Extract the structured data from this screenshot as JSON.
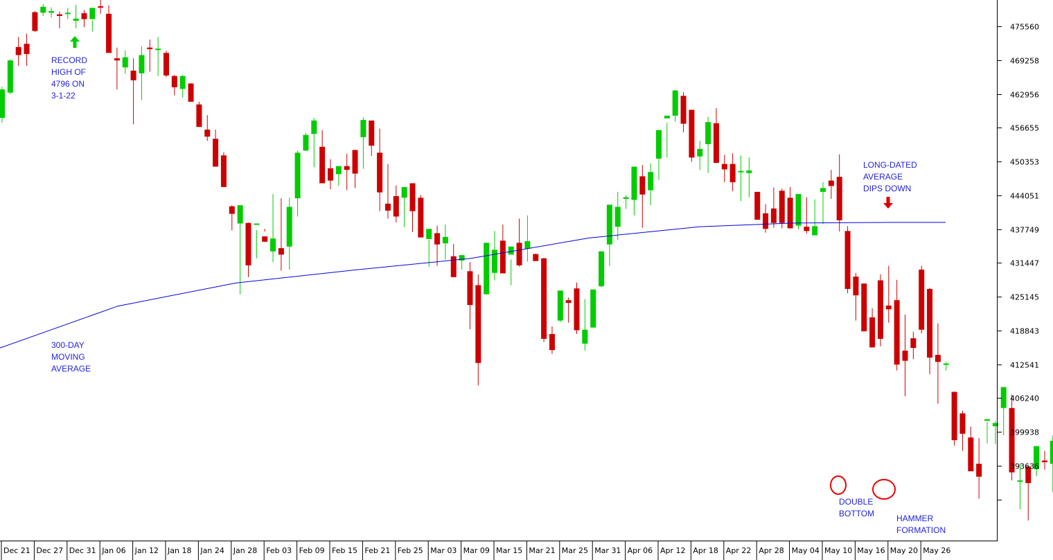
{
  "chart_data": {
    "type": "candlestick",
    "x_axis_labels": [
      "Dec 21",
      "Dec 27",
      "Dec 31",
      "Jan 06",
      "Jan 12",
      "Jan 18",
      "Jan 24",
      "Jan 28",
      "Feb 03",
      "Feb 09",
      "Feb 15",
      "Feb 21",
      "Feb 25",
      "Mar 03",
      "Mar 09",
      "Mar 15",
      "Mar 21",
      "Mar 25",
      "Mar 31",
      "Apr 06",
      "Apr 12",
      "Apr 18",
      "Apr 22",
      "Apr 28",
      "May 04",
      "May 10",
      "May 16",
      "May 20",
      "May 26"
    ],
    "y_axis_ticks": [
      475560,
      469258,
      462956,
      456655,
      450353,
      444051,
      437749,
      431447,
      425145,
      418843,
      412541,
      406240,
      399938,
      393636
    ],
    "ylim": [
      383000,
      482000
    ],
    "colors": {
      "up": "#00cc00",
      "down": "#cc0000",
      "moving_average": "#0000dd",
      "annotation": "#2222dd"
    },
    "candles": [
      [
        464300,
        457600,
        458500,
        463800
      ],
      [
        469400,
        462900,
        463200,
        469200
      ],
      [
        473600,
        468200,
        471700,
        470200
      ],
      [
        474200,
        468200,
        472300,
        470400
      ],
      [
        478400,
        474500,
        478200,
        474700
      ],
      [
        479700,
        477500,
        478100,
        479200
      ],
      [
        479100,
        477200,
        478100,
        478400
      ],
      [
        478300,
        475200,
        477800,
        477500
      ],
      [
        479000,
        476900,
        478000,
        478100
      ],
      [
        479600,
        475200,
        476600,
        477000
      ],
      [
        478600,
        475400,
        478000,
        476900
      ],
      [
        476700,
        474600,
        476900,
        479000
      ],
      [
        481500,
        477900,
        479300,
        479200
      ],
      [
        479500,
        470600,
        477900,
        470600
      ],
      [
        471600,
        463800,
        469600,
        469200
      ],
      [
        471100,
        466700,
        467900,
        469800
      ],
      [
        469600,
        457300,
        467300,
        465500
      ],
      [
        471800,
        461800,
        466800,
        470200
      ],
      [
        473100,
        467100,
        471600,
        471300
      ],
      [
        473600,
        466300,
        471200,
        471400
      ],
      [
        471000,
        466100,
        470600,
        466400
      ],
      [
        466500,
        462700,
        466300,
        464200
      ],
      [
        466500,
        462300,
        463900,
        466300
      ],
      [
        465000,
        462900,
        464900,
        461500
      ],
      [
        461500,
        458100,
        461000,
        456800
      ],
      [
        459000,
        454200,
        456300,
        455000
      ],
      [
        456300,
        454000,
        454600,
        449400
      ],
      [
        452100,
        445800,
        451500,
        445600
      ],
      [
        442200,
        437500,
        442000,
        440600
      ],
      [
        441200,
        425600,
        438800,
        442200
      ],
      [
        439000,
        428800,
        438900,
        431000
      ],
      [
        437600,
        432300,
        438700,
        438800
      ],
      [
        437800,
        437300,
        436400,
        435400
      ],
      [
        444300,
        431600,
        433600,
        436000
      ],
      [
        443500,
        430000,
        434200,
        433000
      ],
      [
        443600,
        430200,
        434500,
        441900
      ],
      [
        452400,
        440100,
        443500,
        452000
      ],
      [
        455700,
        452300,
        452400,
        455300
      ],
      [
        458500,
        449300,
        455500,
        458000
      ],
      [
        456200,
        450800,
        453100,
        446300
      ],
      [
        450800,
        445200,
        449100,
        446800
      ],
      [
        448400,
        445800,
        448000,
        449500
      ],
      [
        451800,
        445000,
        449500,
        448800
      ],
      [
        452600,
        445400,
        452500,
        448100
      ],
      [
        458600,
        449000,
        454900,
        458100
      ],
      [
        457900,
        451400,
        458000,
        453300
      ],
      [
        456500,
        441100,
        452000,
        444600
      ],
      [
        449900,
        439700,
        442500,
        441200
      ],
      [
        445900,
        439000,
        443900,
        440100
      ],
      [
        445300,
        438100,
        443600,
        445600
      ],
      [
        446100,
        437200,
        446300,
        441100
      ],
      [
        444100,
        436600,
        443600,
        436200
      ],
      [
        435800,
        430700,
        435900,
        437800
      ],
      [
        438400,
        430900,
        437000,
        434900
      ],
      [
        438600,
        432100,
        435100,
        436300
      ],
      [
        435000,
        430800,
        432700,
        428800
      ],
      [
        432800,
        430200,
        431900,
        432900
      ],
      [
        431600,
        419100,
        429900,
        423600
      ],
      [
        429300,
        408600,
        427300,
        412800
      ],
      [
        433900,
        425900,
        425600,
        435200
      ],
      [
        437400,
        428200,
        429600,
        433900
      ],
      [
        438600,
        432000,
        435600,
        429500
      ],
      [
        432100,
        427300,
        433000,
        434500
      ],
      [
        439700,
        430800,
        435200,
        431000
      ],
      [
        440300,
        431700,
        434100,
        435500
      ],
      [
        433200,
        432000,
        433100,
        431800
      ],
      [
        432400,
        416700,
        432300,
        417300
      ],
      [
        419600,
        414500,
        418200,
        415200
      ],
      [
        425600,
        420400,
        420700,
        426300
      ],
      [
        425000,
        420300,
        424500,
        424000
      ],
      [
        427800,
        418200,
        426700,
        418900
      ],
      [
        424700,
        415100,
        416400,
        419000
      ],
      [
        425600,
        419400,
        419400,
        426500
      ],
      [
        433500,
        426900,
        427100,
        433600
      ],
      [
        437400,
        430900,
        434900,
        442300
      ],
      [
        444700,
        435700,
        438200,
        441900
      ],
      [
        444100,
        441500,
        443400,
        443700
      ],
      [
        446300,
        440300,
        443200,
        449400
      ],
      [
        449700,
        438000,
        447600,
        444200
      ],
      [
        450000,
        442200,
        445000,
        448400
      ],
      [
        456300,
        446900,
        450900,
        456200
      ],
      [
        457600,
        451100,
        458400,
        458900
      ],
      [
        463700,
        457800,
        458900,
        463600
      ],
      [
        463300,
        455800,
        462600,
        457400
      ],
      [
        459500,
        450300,
        460000,
        451100
      ],
      [
        454200,
        448800,
        451300,
        452700
      ],
      [
        458700,
        448200,
        453600,
        457700
      ],
      [
        460300,
        451500,
        457500,
        450100
      ],
      [
        451600,
        446500,
        449900,
        448900
      ],
      [
        451900,
        444800,
        449900,
        446500
      ],
      [
        451500,
        443000,
        448400,
        448600
      ],
      [
        451100,
        443700,
        448200,
        448700
      ],
      [
        444000,
        440100,
        444700,
        439500
      ],
      [
        442400,
        437100,
        440700,
        437800
      ],
      [
        445500,
        438000,
        441600,
        438900
      ],
      [
        445300,
        437900,
        444900,
        438900
      ],
      [
        445600,
        438500,
        443600,
        437900
      ],
      [
        444300,
        437700,
        438400,
        444300
      ],
      [
        443700,
        436900,
        438200,
        437400
      ],
      [
        443300,
        437000,
        436600,
        438300
      ],
      [
        446500,
        438700,
        444700,
        445400
      ],
      [
        448800,
        443400,
        446800,
        445800
      ],
      [
        451700,
        437300,
        447500,
        439400
      ],
      [
        438300,
        425800,
        437400,
        426600
      ],
      [
        429600,
        420700,
        428900,
        425400
      ],
      [
        426000,
        422000,
        427600,
        418700
      ],
      [
        423000,
        415700,
        421300,
        415700
      ],
      [
        429300,
        415900,
        428200,
        417300
      ],
      [
        430900,
        420300,
        423500,
        422800
      ],
      [
        428300,
        411400,
        424500,
        412500
      ],
      [
        421800,
        406600,
        415100,
        413200
      ],
      [
        418600,
        413500,
        417400,
        415600
      ],
      [
        430900,
        418300,
        430200,
        419000
      ],
      [
        426800,
        410700,
        426600,
        413800
      ],
      [
        420200,
        405200,
        414300,
        413000
      ],
      [
        413000,
        411400,
        412700,
        412700
      ],
      [
        407500,
        397400,
        407400,
        398400
      ],
      [
        403900,
        396400,
        403400,
        399600
      ],
      [
        400900,
        394000,
        398900,
        392600
      ],
      [
        398800,
        387500,
        394000,
        391600
      ],
      [
        401800,
        397800,
        402000,
        402300
      ],
      [
        402000,
        397700,
        401000,
        401600
      ],
      [
        406200,
        399300,
        404400,
        408300
      ],
      [
        406900,
        390900,
        404400,
        392400
      ],
      [
        394000,
        385500,
        390800,
        390900
      ],
      [
        393700,
        383400,
        393500,
        390400
      ],
      [
        397300,
        391700,
        393000,
        397300
      ],
      [
        396400,
        392900,
        394600,
        394300
      ],
      [
        399300,
        388700,
        394000,
        398300
      ],
      [
        409300,
        397300,
        406300,
        398300
      ],
      [
        414100,
        405800,
        408000,
        414200
      ],
      [
        415500,
        410500,
        408000,
        414200
      ],
      [
        416100,
        409000,
        414400,
        412400
      ]
    ],
    "moving_average": [
      [
        0,
        415600
      ],
      [
        170,
        423400
      ],
      [
        340,
        427700
      ],
      [
        510,
        430100
      ],
      [
        680,
        432300
      ],
      [
        850,
        436100
      ],
      [
        1010,
        438200
      ],
      [
        1150,
        438900
      ],
      [
        1280,
        439000
      ],
      [
        1365,
        439000
      ]
    ],
    "annotations": [
      {
        "text": [
          "RECORD",
          "HIGH OF",
          "4796 ON",
          "3-1-22"
        ]
      },
      {
        "text": [
          "300-DAY",
          "MOVING",
          "AVERAGE"
        ]
      },
      {
        "text": [
          "LONG-DATED",
          "AVERAGE",
          "DIPS DOWN"
        ]
      },
      {
        "text": [
          "DOUBLE",
          "BOTTOM"
        ]
      },
      {
        "text": [
          "HAMMER",
          "FORMATION"
        ]
      }
    ]
  }
}
